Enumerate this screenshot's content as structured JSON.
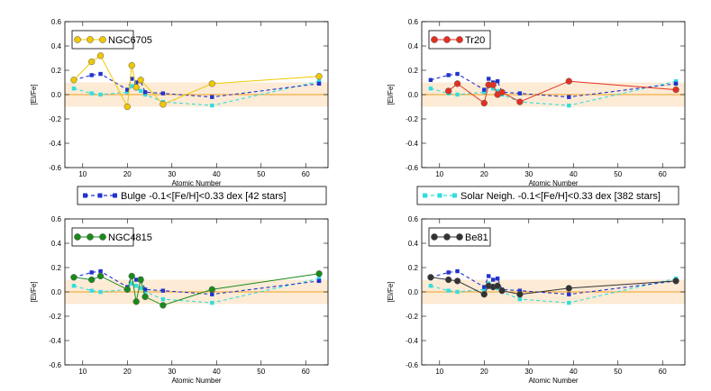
{
  "colors": {
    "band": "#fdebd6",
    "zero_line": "#f0a020",
    "bulge": "#2233cc",
    "solar": "#33dddd"
  },
  "chart_data": [
    {
      "type": "line",
      "xlabel": "Atomic Number",
      "ylabel": "[El/Fe]",
      "xlim": [
        6,
        65
      ],
      "ylim": [
        -0.6,
        0.6
      ],
      "xticks": [
        "10",
        "20",
        "30",
        "40",
        "50",
        "60"
      ],
      "yticks": [
        "-0.6",
        "-0.4",
        "-0.2",
        "0.0",
        "0.2",
        "0.4",
        "0.6"
      ],
      "band": [
        -0.1,
        0.1
      ],
      "legend": "NGC6705",
      "legend_position": "top-left",
      "series": [
        {
          "name": "NGC6705",
          "color": "#f0c800",
          "x": [
            8,
            12,
            14,
            20,
            21,
            22,
            23,
            28,
            39,
            63
          ],
          "values": [
            0.12,
            0.27,
            0.32,
            -0.1,
            0.24,
            0.06,
            0.12,
            -0.08,
            0.09,
            0.15
          ]
        },
        {
          "name": "Bulge",
          "color": "#2233cc",
          "x": [
            8,
            12,
            14,
            20,
            21,
            22,
            23,
            24,
            28,
            39,
            63
          ],
          "values": [
            0.12,
            0.16,
            0.17,
            0.04,
            0.13,
            0.1,
            0.11,
            0.02,
            0.01,
            -0.02,
            0.09
          ]
        },
        {
          "name": "Solar",
          "color": "#33dddd",
          "x": [
            8,
            12,
            14,
            20,
            21,
            22,
            23,
            24,
            28,
            39,
            63
          ],
          "values": [
            0.05,
            0.01,
            0.0,
            0.02,
            0.07,
            0.05,
            0.03,
            0.0,
            -0.06,
            -0.09,
            0.11
          ]
        }
      ]
    },
    {
      "type": "line",
      "xlabel": "Atomic Number",
      "ylabel": "[El/Fe]",
      "xlim": [
        6,
        65
      ],
      "ylim": [
        -0.6,
        0.6
      ],
      "xticks": [
        "10",
        "20",
        "30",
        "40",
        "50",
        "60"
      ],
      "yticks": [
        "-0.6",
        "-0.4",
        "-0.2",
        "0.0",
        "0.2",
        "0.4",
        "0.6"
      ],
      "band": [
        -0.1,
        0.1
      ],
      "legend": "Tr20",
      "legend_position": "top-left",
      "series": [
        {
          "name": "Tr20",
          "color": "#e53020",
          "x": [
            12,
            14,
            20,
            21,
            22,
            23,
            24,
            28,
            39,
            63
          ],
          "values": [
            0.03,
            0.09,
            -0.07,
            0.08,
            0.08,
            0.0,
            0.02,
            -0.06,
            0.11,
            0.04
          ]
        },
        {
          "name": "Bulge",
          "color": "#2233cc",
          "x": [
            8,
            12,
            14,
            20,
            21,
            22,
            23,
            24,
            28,
            39,
            63
          ],
          "values": [
            0.12,
            0.16,
            0.17,
            0.04,
            0.13,
            0.1,
            0.11,
            0.02,
            0.01,
            -0.02,
            0.09
          ]
        },
        {
          "name": "Solar",
          "color": "#33dddd",
          "x": [
            8,
            12,
            14,
            20,
            21,
            22,
            23,
            24,
            28,
            39,
            63
          ],
          "values": [
            0.05,
            0.01,
            0.0,
            0.02,
            0.07,
            0.05,
            0.03,
            0.0,
            -0.06,
            -0.09,
            0.11
          ]
        }
      ]
    },
    {
      "type": "line",
      "xlabel": "Atomic Number",
      "ylabel": "[El/Fe]",
      "xlim": [
        6,
        65
      ],
      "ylim": [
        -0.6,
        0.6
      ],
      "xticks": [
        "10",
        "20",
        "30",
        "40",
        "50",
        "60"
      ],
      "yticks": [
        "-0.6",
        "-0.4",
        "-0.2",
        "0.0",
        "0.2",
        "0.4",
        "0.6"
      ],
      "band": [
        -0.1,
        0.1
      ],
      "legend": "NGC4815",
      "legend_position": "top-left",
      "series": [
        {
          "name": "NGC4815",
          "color": "#1a8a1a",
          "x": [
            8,
            12,
            14,
            20,
            21,
            22,
            23,
            24,
            28,
            39,
            63
          ],
          "values": [
            0.12,
            0.1,
            0.13,
            0.02,
            0.13,
            -0.08,
            0.1,
            -0.04,
            -0.11,
            0.02,
            0.15
          ]
        },
        {
          "name": "Bulge",
          "color": "#2233cc",
          "x": [
            8,
            12,
            14,
            20,
            21,
            22,
            23,
            24,
            28,
            39,
            63
          ],
          "values": [
            0.12,
            0.16,
            0.17,
            0.04,
            0.13,
            0.1,
            0.11,
            0.02,
            0.01,
            -0.02,
            0.09
          ]
        },
        {
          "name": "Solar",
          "color": "#33dddd",
          "x": [
            8,
            12,
            14,
            20,
            21,
            22,
            23,
            24,
            28,
            39,
            63
          ],
          "values": [
            0.05,
            0.01,
            0.0,
            0.02,
            0.07,
            0.05,
            0.03,
            0.0,
            -0.06,
            -0.09,
            0.11
          ]
        }
      ]
    },
    {
      "type": "line",
      "xlabel": "Atomic Number",
      "ylabel": "[El/Fe]",
      "xlim": [
        6,
        65
      ],
      "ylim": [
        -0.6,
        0.6
      ],
      "xticks": [
        "10",
        "20",
        "30",
        "40",
        "50",
        "60"
      ],
      "yticks": [
        "-0.6",
        "-0.4",
        "-0.2",
        "0.0",
        "0.2",
        "0.4",
        "0.6"
      ],
      "band": [
        -0.1,
        0.1
      ],
      "legend": "Be81",
      "legend_position": "top-left",
      "series": [
        {
          "name": "Be81",
          "color": "#333333",
          "x": [
            8,
            12,
            14,
            20,
            21,
            22,
            23,
            24,
            28,
            39,
            63
          ],
          "values": [
            0.12,
            0.1,
            0.09,
            -0.02,
            0.05,
            0.04,
            0.05,
            0.01,
            -0.02,
            0.03,
            0.09
          ]
        },
        {
          "name": "Bulge",
          "color": "#2233cc",
          "x": [
            8,
            12,
            14,
            20,
            21,
            22,
            23,
            24,
            28,
            39,
            63
          ],
          "values": [
            0.12,
            0.16,
            0.17,
            0.04,
            0.13,
            0.1,
            0.11,
            0.02,
            0.01,
            -0.02,
            0.09
          ]
        },
        {
          "name": "Solar",
          "color": "#33dddd",
          "x": [
            8,
            12,
            14,
            20,
            21,
            22,
            23,
            24,
            28,
            39,
            63
          ],
          "values": [
            0.05,
            0.01,
            0.0,
            0.02,
            0.07,
            0.05,
            0.03,
            0.0,
            -0.06,
            -0.09,
            0.11
          ]
        }
      ]
    }
  ],
  "reference_legends": {
    "bulge": "Bulge -0.1<[Fe/H]<0.33 dex [42 stars]",
    "solar": "Solar Neigh. -0.1<[Fe/H]<0.33 dex [382 stars]"
  }
}
